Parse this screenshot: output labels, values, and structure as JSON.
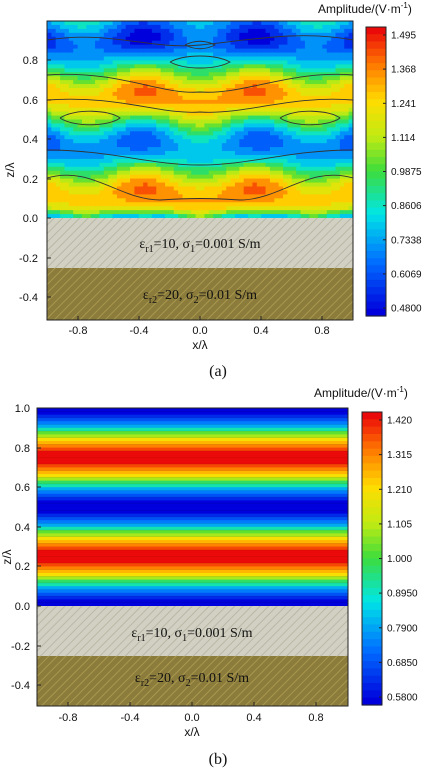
{
  "panels": [
    {
      "caption": "(a)",
      "colorbar": {
        "title": "Amplitude/(V·m",
        "title_sup": "-1",
        "title_end": ")",
        "min": 0.48,
        "max": 1.495,
        "ticks": [
          "1.495",
          "1.368",
          "1.241",
          "1.114",
          "0.9875",
          "0.8606",
          "0.7338",
          "0.6069",
          "0.4800"
        ]
      },
      "chart_data": {
        "type": "heatmap",
        "xlabel": "x/λ",
        "ylabel": "z/λ",
        "xlim": [
          -1.0,
          1.0
        ],
        "ylim": [
          -0.5,
          1.0
        ],
        "xticks": [
          "-0.8",
          "-0.4",
          "0.0",
          "0.4",
          "0.8"
        ],
        "yticks": [
          "0.8",
          "0.6",
          "0.4",
          "0.2",
          "0.0",
          "-0.2",
          "-0.4"
        ],
        "field_description": "Standing-wave field above two-layer ground with periodic lateral variation",
        "layers": [
          {
            "z_top": 0.0,
            "z_bottom": -0.25,
            "label_eps": "ε",
            "label_eps_sub": "r1",
            "label_eps_val": "=10, σ",
            "label_sig_sub": "1",
            "label_sig_val": "=0.001 S/m"
          },
          {
            "z_top": -0.25,
            "z_bottom": -0.5,
            "label_eps": "ε",
            "label_eps_sub": "r2",
            "label_eps_val": "=20, σ",
            "label_sig_sub": "2",
            "label_sig_val": "=0.01 S/m"
          }
        ]
      }
    },
    {
      "caption": "(b)",
      "colorbar": {
        "title": "Amplitude/(V·m",
        "title_sup": "-1",
        "title_end": ")",
        "min": 0.58,
        "max": 1.42,
        "ticks": [
          "1.420",
          "1.315",
          "1.210",
          "1.105",
          "1.000",
          "0.8950",
          "0.7900",
          "0.6850",
          "0.5800"
        ]
      },
      "chart_data": {
        "type": "heatmap",
        "xlabel": "x/λ",
        "ylabel": "z/λ",
        "xlim": [
          -1.0,
          1.0
        ],
        "ylim": [
          -0.5,
          1.0
        ],
        "xticks": [
          "-0.8",
          "-0.4",
          "0.0",
          "0.4",
          "0.8"
        ],
        "yticks": [
          "1.0",
          "0.8",
          "0.6",
          "0.4",
          "0.2",
          "0.0",
          "-0.2",
          "-0.4"
        ],
        "field_description": "Horizontally uniform standing-wave bands",
        "layers": [
          {
            "z_top": 0.0,
            "z_bottom": -0.25,
            "label_eps": "ε",
            "label_eps_sub": "r1",
            "label_eps_val": "=10, σ",
            "label_sig_sub": "1",
            "label_sig_val": "=0.001 S/m"
          },
          {
            "z_top": -0.25,
            "z_bottom": -0.5,
            "label_eps": "ε",
            "label_eps_sub": "r2",
            "label_eps_val": "=20, σ",
            "label_sig_sub": "2",
            "label_sig_val": "=0.01 S/m"
          }
        ]
      }
    }
  ]
}
